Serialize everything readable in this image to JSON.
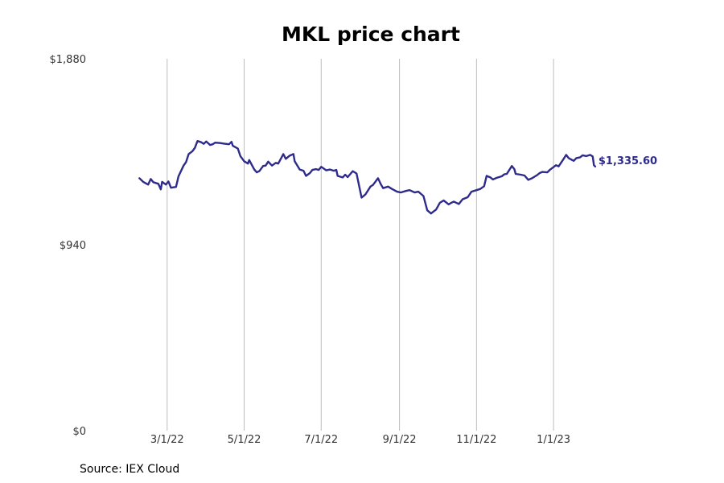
{
  "chart_data": {
    "type": "line",
    "title": "MKL price chart",
    "source": "Source: IEX Cloud",
    "line_color": "#2e2b8a",
    "grid": "vertical",
    "ylim": [
      0,
      1880
    ],
    "y_ticks": [
      {
        "value": 0,
        "label": "$0"
      },
      {
        "value": 940,
        "label": "$940"
      },
      {
        "value": 1880,
        "label": "$1,880"
      }
    ],
    "xlim": [
      "2022-01-20",
      "2023-02-26"
    ],
    "x_ticks": [
      {
        "date": "2022-03-01",
        "label": "3/1/22"
      },
      {
        "date": "2022-05-01",
        "label": "5/1/22"
      },
      {
        "date": "2022-07-01",
        "label": "7/1/22"
      },
      {
        "date": "2022-09-01",
        "label": "9/1/22"
      },
      {
        "date": "2022-11-01",
        "label": "11/1/22"
      },
      {
        "date": "2023-01-01",
        "label": "1/1/23"
      }
    ],
    "last_value_label": "$1,335.60",
    "series": [
      {
        "points": [
          [
            "2022-02-07",
            1276
          ],
          [
            "2022-02-10",
            1258
          ],
          [
            "2022-02-14",
            1244
          ],
          [
            "2022-02-16",
            1272
          ],
          [
            "2022-02-18",
            1256
          ],
          [
            "2022-02-22",
            1248
          ],
          [
            "2022-02-24",
            1220
          ],
          [
            "2022-02-25",
            1258
          ],
          [
            "2022-02-28",
            1244
          ],
          [
            "2022-03-02",
            1260
          ],
          [
            "2022-03-04",
            1228
          ],
          [
            "2022-03-08",
            1232
          ],
          [
            "2022-03-10",
            1286
          ],
          [
            "2022-03-14",
            1340
          ],
          [
            "2022-03-16",
            1358
          ],
          [
            "2022-03-18",
            1398
          ],
          [
            "2022-03-21",
            1413
          ],
          [
            "2022-03-23",
            1430
          ],
          [
            "2022-03-25",
            1464
          ],
          [
            "2022-03-28",
            1458
          ],
          [
            "2022-03-30",
            1450
          ],
          [
            "2022-04-01",
            1462
          ],
          [
            "2022-04-04",
            1444
          ],
          [
            "2022-04-06",
            1448
          ],
          [
            "2022-04-08",
            1456
          ],
          [
            "2022-04-12",
            1454
          ],
          [
            "2022-04-15",
            1451
          ],
          [
            "2022-04-19",
            1448
          ],
          [
            "2022-04-21",
            1460
          ],
          [
            "2022-04-22",
            1440
          ],
          [
            "2022-04-26",
            1426
          ],
          [
            "2022-04-28",
            1388
          ],
          [
            "2022-05-01",
            1362
          ],
          [
            "2022-05-04",
            1350
          ],
          [
            "2022-05-05",
            1368
          ],
          [
            "2022-05-09",
            1320
          ],
          [
            "2022-05-11",
            1306
          ],
          [
            "2022-05-13",
            1312
          ],
          [
            "2022-05-16",
            1338
          ],
          [
            "2022-05-18",
            1340
          ],
          [
            "2022-05-20",
            1360
          ],
          [
            "2022-05-23",
            1340
          ],
          [
            "2022-05-26",
            1354
          ],
          [
            "2022-05-28",
            1350
          ],
          [
            "2022-06-01",
            1398
          ],
          [
            "2022-06-03",
            1374
          ],
          [
            "2022-06-06",
            1390
          ],
          [
            "2022-06-09",
            1398
          ],
          [
            "2022-06-10",
            1362
          ],
          [
            "2022-06-14",
            1320
          ],
          [
            "2022-06-17",
            1314
          ],
          [
            "2022-06-19",
            1288
          ],
          [
            "2022-06-22",
            1302
          ],
          [
            "2022-06-24",
            1318
          ],
          [
            "2022-06-27",
            1322
          ],
          [
            "2022-06-29",
            1318
          ],
          [
            "2022-07-01",
            1334
          ],
          [
            "2022-07-05",
            1316
          ],
          [
            "2022-07-08",
            1320
          ],
          [
            "2022-07-11",
            1314
          ],
          [
            "2022-07-13",
            1318
          ],
          [
            "2022-07-14",
            1288
          ],
          [
            "2022-07-18",
            1280
          ],
          [
            "2022-07-20",
            1294
          ],
          [
            "2022-07-22",
            1282
          ],
          [
            "2022-07-26",
            1312
          ],
          [
            "2022-07-29",
            1300
          ],
          [
            "2022-08-02",
            1178
          ],
          [
            "2022-08-05",
            1194
          ],
          [
            "2022-08-09",
            1234
          ],
          [
            "2022-08-11",
            1242
          ],
          [
            "2022-08-15",
            1276
          ],
          [
            "2022-08-17",
            1248
          ],
          [
            "2022-08-19",
            1226
          ],
          [
            "2022-08-23",
            1234
          ],
          [
            "2022-08-26",
            1222
          ],
          [
            "2022-08-30",
            1208
          ],
          [
            "2022-09-02",
            1204
          ],
          [
            "2022-09-06",
            1212
          ],
          [
            "2022-09-09",
            1216
          ],
          [
            "2022-09-13",
            1204
          ],
          [
            "2022-09-16",
            1208
          ],
          [
            "2022-09-20",
            1186
          ],
          [
            "2022-09-23",
            1114
          ],
          [
            "2022-09-26",
            1098
          ],
          [
            "2022-09-28",
            1108
          ],
          [
            "2022-09-30",
            1118
          ],
          [
            "2022-10-03",
            1152
          ],
          [
            "2022-10-06",
            1164
          ],
          [
            "2022-10-10",
            1144
          ],
          [
            "2022-10-12",
            1152
          ],
          [
            "2022-10-14",
            1158
          ],
          [
            "2022-10-18",
            1146
          ],
          [
            "2022-10-21",
            1170
          ],
          [
            "2022-10-25",
            1180
          ],
          [
            "2022-10-28",
            1208
          ],
          [
            "2022-11-01",
            1216
          ],
          [
            "2022-11-04",
            1222
          ],
          [
            "2022-11-07",
            1236
          ],
          [
            "2022-11-09",
            1288
          ],
          [
            "2022-11-12",
            1280
          ],
          [
            "2022-11-14",
            1270
          ],
          [
            "2022-11-17",
            1278
          ],
          [
            "2022-11-21",
            1286
          ],
          [
            "2022-11-23",
            1296
          ],
          [
            "2022-11-25",
            1298
          ],
          [
            "2022-11-29",
            1338
          ],
          [
            "2022-12-01",
            1322
          ],
          [
            "2022-12-02",
            1298
          ],
          [
            "2022-12-06",
            1294
          ],
          [
            "2022-12-09",
            1290
          ],
          [
            "2022-12-12",
            1268
          ],
          [
            "2022-12-15",
            1276
          ],
          [
            "2022-12-19",
            1292
          ],
          [
            "2022-12-21",
            1302
          ],
          [
            "2022-12-23",
            1308
          ],
          [
            "2022-12-27",
            1306
          ],
          [
            "2022-12-29",
            1318
          ],
          [
            "2023-01-03",
            1342
          ],
          [
            "2023-01-05",
            1336
          ],
          [
            "2023-01-09",
            1374
          ],
          [
            "2023-01-11",
            1394
          ],
          [
            "2023-01-13",
            1378
          ],
          [
            "2023-01-17",
            1364
          ],
          [
            "2023-01-19",
            1378
          ],
          [
            "2023-01-22",
            1382
          ],
          [
            "2023-01-24",
            1392
          ],
          [
            "2023-01-27",
            1388
          ],
          [
            "2023-01-30",
            1394
          ],
          [
            "2023-02-01",
            1386
          ],
          [
            "2023-02-02",
            1342
          ],
          [
            "2023-02-03",
            1335.6
          ]
        ]
      }
    ]
  }
}
